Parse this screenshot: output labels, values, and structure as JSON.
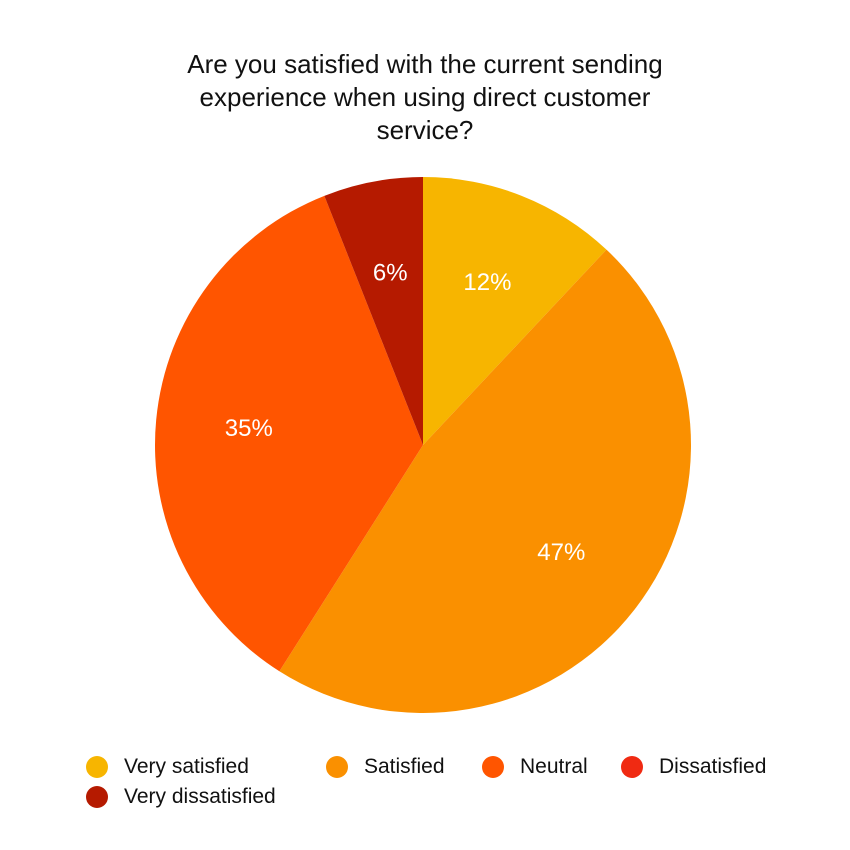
{
  "chart_data": {
    "type": "pie",
    "title_lines": [
      "Are you satisfied with the current sending",
      "experience when using direct customer",
      "service?"
    ],
    "slices": [
      {
        "name": "Very satisfied",
        "value": 12,
        "label": "12%",
        "color": "#F7B500"
      },
      {
        "name": "Satisfied",
        "value": 47,
        "label": "47%",
        "color": "#FA9000"
      },
      {
        "name": "Neutral",
        "value": 35,
        "label": "35%",
        "color": "#FF5500"
      },
      {
        "name": "Dissatisfied",
        "value": 0,
        "label": "",
        "color": "#F02A12"
      },
      {
        "name": "Very dissatisfied",
        "value": 6,
        "label": "6%",
        "color": "#B51A00"
      }
    ],
    "legend": {
      "placement": "bottom",
      "items": [
        {
          "label": "Very satisfied",
          "color": "#F7B500"
        },
        {
          "label": "Satisfied",
          "color": "#FA9000"
        },
        {
          "label": "Neutral",
          "color": "#FF5500"
        },
        {
          "label": "Dissatisfied",
          "color": "#F02A12"
        },
        {
          "label": "Very dissatisfied",
          "color": "#B51A00"
        }
      ]
    }
  }
}
